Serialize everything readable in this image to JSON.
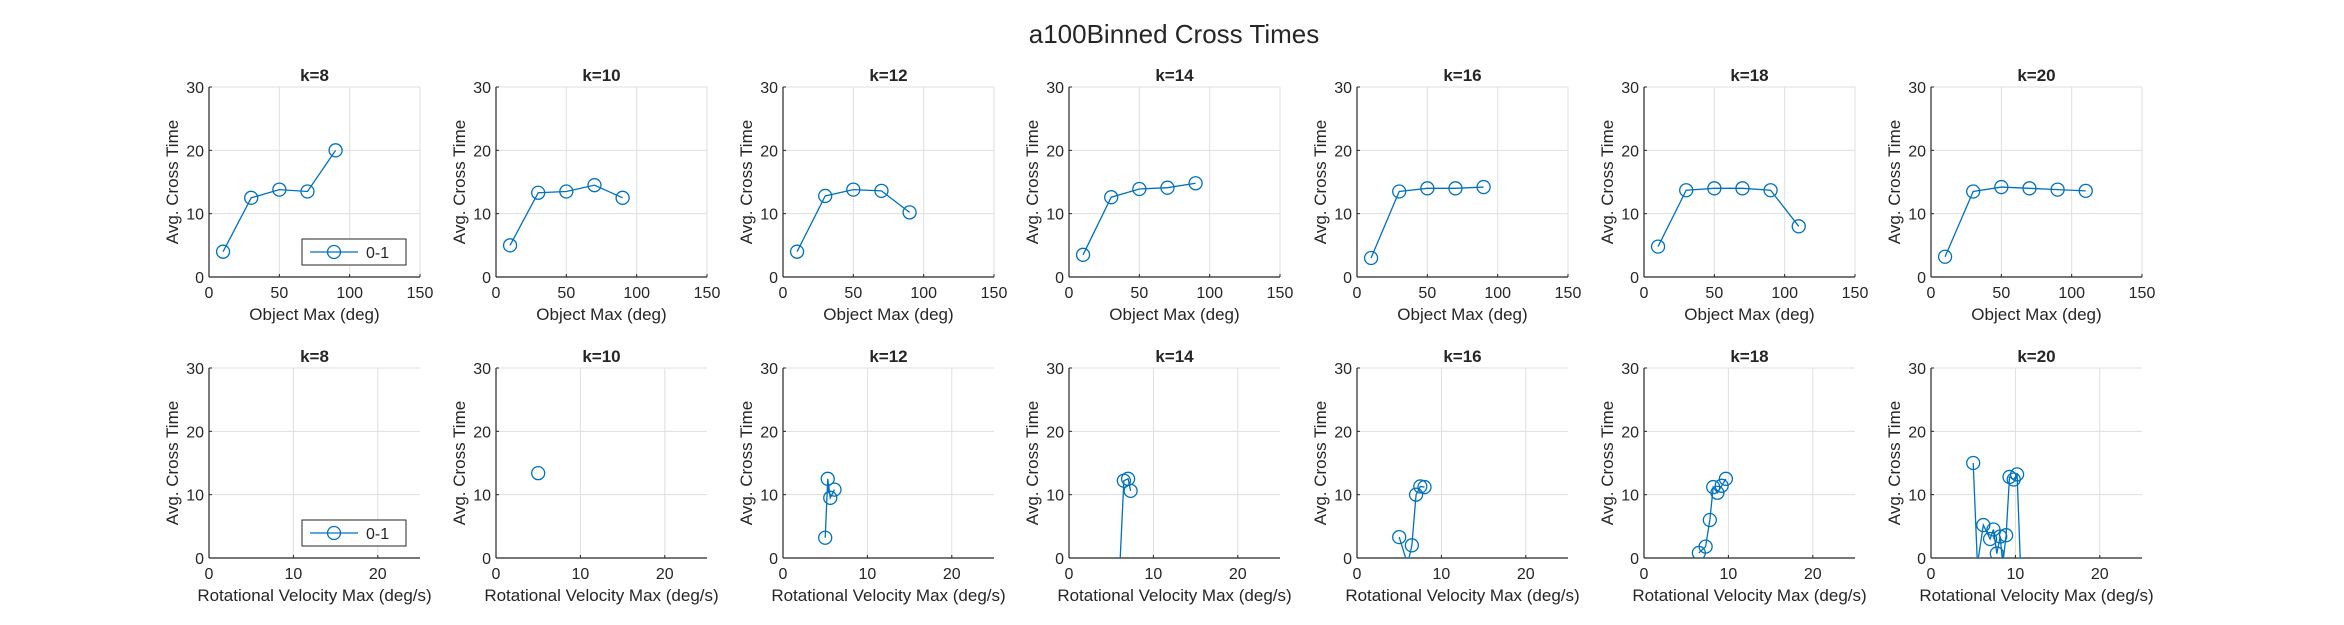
{
  "figure": {
    "title": "a100Binned Cross Times"
  },
  "colors": {
    "series": "#0072BD",
    "axis": "#262626",
    "grid": "#dfdfdf",
    "text": "#262626"
  },
  "chart_data": [
    {
      "type": "line",
      "title": "k=8",
      "xlabel": "Object Max (deg)",
      "ylabel": "Avg. Cross Time",
      "xlim": [
        0,
        150
      ],
      "ylim": [
        0,
        30
      ],
      "xticks": [
        0,
        50,
        100,
        150
      ],
      "yticks": [
        0,
        10,
        20,
        30
      ],
      "grid": true,
      "legend": {
        "entries": [
          "0-1"
        ],
        "location": "bottom-right"
      },
      "series": [
        {
          "name": "0-1",
          "marker": "circle",
          "x": [
            10,
            30,
            50,
            70,
            90
          ],
          "y": [
            4,
            12.5,
            13.8,
            13.5,
            20
          ]
        }
      ]
    },
    {
      "type": "line",
      "title": "k=10",
      "xlabel": "Object Max (deg)",
      "ylabel": "Avg. Cross Time",
      "xlim": [
        0,
        150
      ],
      "ylim": [
        0,
        30
      ],
      "xticks": [
        0,
        50,
        100,
        150
      ],
      "yticks": [
        0,
        10,
        20,
        30
      ],
      "grid": true,
      "series": [
        {
          "name": "0-1",
          "marker": "circle",
          "x": [
            10,
            30,
            50,
            70,
            90
          ],
          "y": [
            5,
            13.3,
            13.5,
            14.5,
            12.5
          ]
        }
      ]
    },
    {
      "type": "line",
      "title": "k=12",
      "xlabel": "Object Max (deg)",
      "ylabel": "Avg. Cross Time",
      "xlim": [
        0,
        150
      ],
      "ylim": [
        0,
        30
      ],
      "xticks": [
        0,
        50,
        100,
        150
      ],
      "yticks": [
        0,
        10,
        20,
        30
      ],
      "grid": true,
      "series": [
        {
          "name": "0-1",
          "marker": "circle",
          "x": [
            10,
            30,
            50,
            70,
            90
          ],
          "y": [
            4,
            12.8,
            13.8,
            13.6,
            10.2
          ]
        }
      ]
    },
    {
      "type": "line",
      "title": "k=14",
      "xlabel": "Object Max (deg)",
      "ylabel": "Avg. Cross Time",
      "xlim": [
        0,
        150
      ],
      "ylim": [
        0,
        30
      ],
      "xticks": [
        0,
        50,
        100,
        150
      ],
      "yticks": [
        0,
        10,
        20,
        30
      ],
      "grid": true,
      "series": [
        {
          "name": "0-1",
          "marker": "circle",
          "x": [
            10,
            30,
            50,
            70,
            90
          ],
          "y": [
            3.5,
            12.6,
            13.9,
            14.1,
            14.8
          ]
        }
      ]
    },
    {
      "type": "line",
      "title": "k=16",
      "xlabel": "Object Max (deg)",
      "ylabel": "Avg. Cross Time",
      "xlim": [
        0,
        150
      ],
      "ylim": [
        0,
        30
      ],
      "xticks": [
        0,
        50,
        100,
        150
      ],
      "yticks": [
        0,
        10,
        20,
        30
      ],
      "grid": true,
      "series": [
        {
          "name": "0-1",
          "marker": "circle",
          "x": [
            10,
            30,
            50,
            70,
            90
          ],
          "y": [
            3,
            13.5,
            14,
            14,
            14.2
          ]
        }
      ]
    },
    {
      "type": "line",
      "title": "k=18",
      "xlabel": "Object Max (deg)",
      "ylabel": "Avg. Cross Time",
      "xlim": [
        0,
        150
      ],
      "ylim": [
        0,
        30
      ],
      "xticks": [
        0,
        50,
        100,
        150
      ],
      "yticks": [
        0,
        10,
        20,
        30
      ],
      "grid": true,
      "series": [
        {
          "name": "0-1",
          "marker": "circle",
          "x": [
            10,
            30,
            50,
            70,
            90,
            110
          ],
          "y": [
            4.8,
            13.7,
            14,
            14,
            13.7,
            8
          ]
        }
      ]
    },
    {
      "type": "line",
      "title": "k=20",
      "xlabel": "Object Max (deg)",
      "ylabel": "Avg. Cross Time",
      "xlim": [
        0,
        150
      ],
      "ylim": [
        0,
        30
      ],
      "xticks": [
        0,
        50,
        100,
        150
      ],
      "yticks": [
        0,
        10,
        20,
        30
      ],
      "grid": true,
      "series": [
        {
          "name": "0-1",
          "marker": "circle",
          "x": [
            10,
            30,
            50,
            70,
            90,
            110
          ],
          "y": [
            3.2,
            13.5,
            14.2,
            14,
            13.8,
            13.6
          ]
        }
      ]
    },
    {
      "type": "line",
      "title": "k=8",
      "xlabel": "Rotational Velocity Max (deg/s)",
      "ylabel": "Avg. Cross Time",
      "xlim": [
        0,
        25
      ],
      "ylim": [
        0,
        30
      ],
      "xticks": [
        0,
        10,
        20
      ],
      "yticks": [
        0,
        10,
        20,
        30
      ],
      "grid": true,
      "legend": {
        "entries": [
          "0-1"
        ],
        "location": "bottom-right"
      },
      "series": [
        {
          "name": "0-1",
          "marker": "circle",
          "x": [],
          "y": []
        }
      ]
    },
    {
      "type": "line",
      "title": "k=10",
      "xlabel": "Rotational Velocity Max (deg/s)",
      "ylabel": "Avg. Cross Time",
      "xlim": [
        0,
        25
      ],
      "ylim": [
        0,
        30
      ],
      "xticks": [
        0,
        10,
        20
      ],
      "yticks": [
        0,
        10,
        20,
        30
      ],
      "grid": true,
      "series": [
        {
          "name": "0-1",
          "marker": "circle",
          "x": [
            5
          ],
          "y": [
            13.4
          ]
        }
      ]
    },
    {
      "type": "line",
      "title": "k=12",
      "xlabel": "Rotational Velocity Max (deg/s)",
      "ylabel": "Avg. Cross Time",
      "xlim": [
        0,
        25
      ],
      "ylim": [
        0,
        30
      ],
      "xticks": [
        0,
        10,
        20
      ],
      "yticks": [
        0,
        10,
        20,
        30
      ],
      "grid": true,
      "series": [
        {
          "name": "0-1",
          "marker": "circle",
          "x": [
            5,
            5.3,
            5.6,
            6.1
          ],
          "y": [
            3.2,
            12.5,
            9.5,
            10.8
          ]
        }
      ]
    },
    {
      "type": "line",
      "title": "k=14",
      "xlabel": "Rotational Velocity Max (deg/s)",
      "ylabel": "Avg. Cross Time",
      "xlim": [
        0,
        25
      ],
      "ylim": [
        0,
        30
      ],
      "xticks": [
        0,
        10,
        20
      ],
      "yticks": [
        0,
        10,
        20,
        30
      ],
      "grid": true,
      "series": [
        {
          "name": "0-1",
          "marker": "circle",
          "x": [
            6,
            6.5,
            7,
            7.3
          ],
          "y": [
            -2,
            12.2,
            12.5,
            10.6
          ]
        }
      ]
    },
    {
      "type": "line",
      "title": "k=16",
      "xlabel": "Rotational Velocity Max (deg/s)",
      "ylabel": "Avg. Cross Time",
      "xlim": [
        0,
        25
      ],
      "ylim": [
        0,
        30
      ],
      "xticks": [
        0,
        10,
        20
      ],
      "yticks": [
        0,
        10,
        20,
        30
      ],
      "grid": true,
      "series": [
        {
          "name": "0-1",
          "marker": "circle",
          "x": [
            5,
            6,
            6.5,
            7,
            7.5,
            8
          ],
          "y": [
            3.3,
            -1,
            2,
            10,
            11.3,
            11.2
          ]
        }
      ]
    },
    {
      "type": "line",
      "title": "k=18",
      "xlabel": "Rotational Velocity Max (deg/s)",
      "ylabel": "Avg. Cross Time",
      "xlim": [
        0,
        25
      ],
      "ylim": [
        0,
        30
      ],
      "xticks": [
        0,
        10,
        20
      ],
      "yticks": [
        0,
        10,
        20,
        30
      ],
      "grid": true,
      "series": [
        {
          "name": "0-1",
          "marker": "circle",
          "x": [
            6.5,
            7.3,
            7.8,
            8.2,
            8.7,
            9.2,
            9.7
          ],
          "y": [
            0.8,
            1.8,
            6,
            11.2,
            10.3,
            11.4,
            12.5
          ]
        }
      ]
    },
    {
      "type": "line",
      "title": "k=20",
      "xlabel": "Rotational Velocity Max (deg/s)",
      "ylabel": "Avg. Cross Time",
      "xlim": [
        0,
        25
      ],
      "ylim": [
        0,
        30
      ],
      "xticks": [
        0,
        10,
        20
      ],
      "yticks": [
        0,
        10,
        20,
        30
      ],
      "grid": true,
      "series": [
        {
          "name": "0-1",
          "marker": "circle",
          "x": [
            5,
            5.5,
            6.2,
            7,
            7.4,
            7.8,
            8.2,
            8.5,
            8.9,
            9.3,
            9.8,
            10.2,
            10.6
          ],
          "y": [
            15,
            -1,
            5.2,
            3,
            4.5,
            0.7,
            3.4,
            -1,
            3.6,
            12.8,
            12.4,
            13.2,
            -1
          ]
        }
      ]
    }
  ]
}
